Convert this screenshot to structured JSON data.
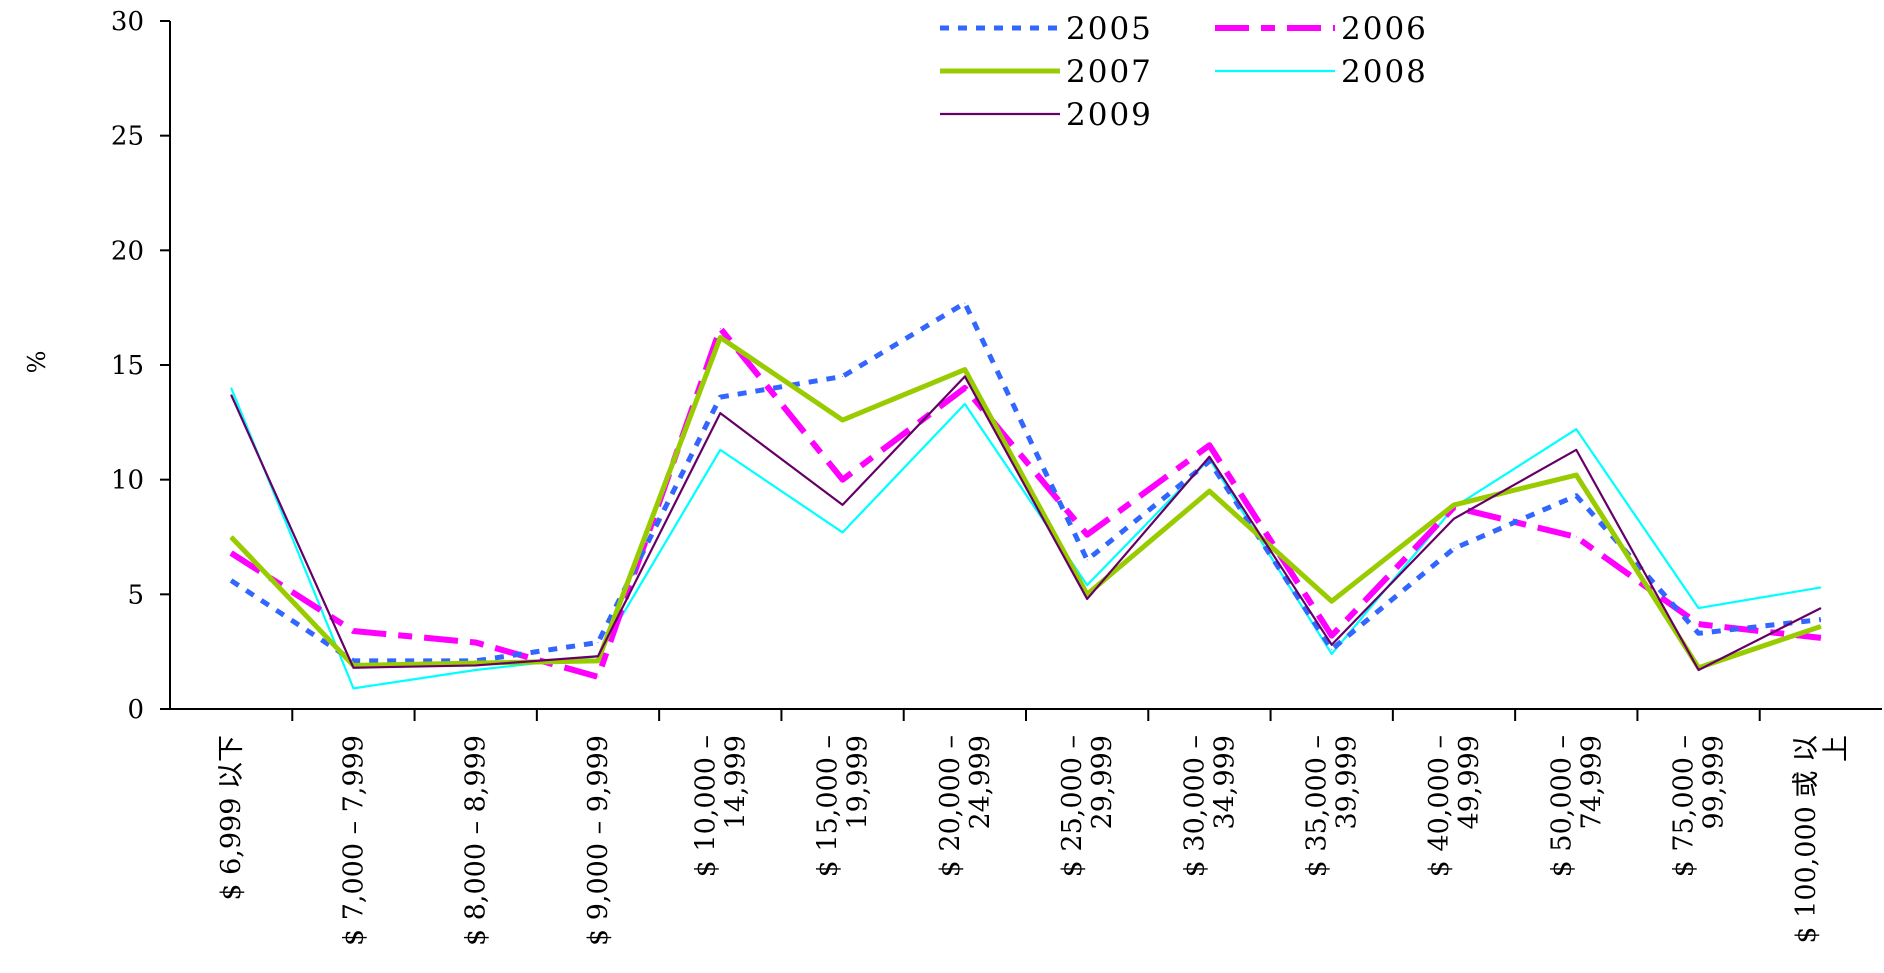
{
  "chart_data": {
    "type": "line",
    "title": "",
    "xlabel": "",
    "ylabel": "%",
    "ylim": [
      0,
      30
    ],
    "yticks": [
      "0",
      "5",
      "10",
      "15",
      "20",
      "25",
      "30"
    ],
    "grid": false,
    "legend_position": "top-center",
    "categories": [
      [
        "$ 6,999 以下"
      ],
      [
        "$ 7,000 – 7,999"
      ],
      [
        "$ 8,000 – 8,999"
      ],
      [
        "$ 9,000 – 9,999"
      ],
      [
        "$ 10,000 –",
        "14,999"
      ],
      [
        "$ 15,000 –",
        "19,999"
      ],
      [
        "$ 20,000 –",
        "24,999"
      ],
      [
        "$ 25,000 –",
        "29,999"
      ],
      [
        "$ 30,000 –",
        "34,999"
      ],
      [
        "$ 35,000 –",
        "39,999"
      ],
      [
        "$ 40,000 –",
        "49,999"
      ],
      [
        "$ 50,000 –",
        "74,999"
      ],
      [
        "$ 75,000 –",
        "99,999"
      ],
      [
        "$ 100,000 或 以",
        "上"
      ]
    ],
    "series": [
      {
        "name": "2005",
        "color": "#3366ff",
        "style": "dotted",
        "values": [
          5.6,
          2.1,
          2.1,
          2.9,
          13.6,
          14.5,
          17.7,
          6.5,
          10.8,
          2.6,
          7.0,
          9.3,
          3.3,
          3.9
        ]
      },
      {
        "name": "2006",
        "color": "#ff00ff",
        "style": "dashed",
        "values": [
          6.8,
          3.4,
          2.9,
          1.4,
          16.6,
          10.0,
          14.0,
          7.6,
          11.5,
          3.2,
          8.8,
          7.5,
          3.7,
          3.1
        ]
      },
      {
        "name": "2007",
        "color": "#99cc00",
        "style": "thick",
        "values": [
          7.5,
          1.9,
          2.0,
          2.1,
          16.2,
          12.6,
          14.8,
          5.0,
          9.5,
          4.7,
          8.9,
          10.2,
          1.8,
          3.6
        ]
      },
      {
        "name": "2008",
        "color": "#00ffff",
        "style": "thin",
        "values": [
          14.0,
          0.9,
          1.7,
          2.3,
          11.3,
          7.7,
          13.3,
          5.4,
          10.9,
          2.4,
          8.8,
          12.2,
          4.4,
          5.3
        ]
      },
      {
        "name": "2009",
        "color": "#660066",
        "style": "thin",
        "values": [
          13.7,
          1.8,
          1.9,
          2.3,
          12.9,
          8.9,
          14.5,
          4.8,
          11.0,
          2.8,
          8.3,
          11.3,
          1.7,
          4.4
        ]
      }
    ]
  }
}
